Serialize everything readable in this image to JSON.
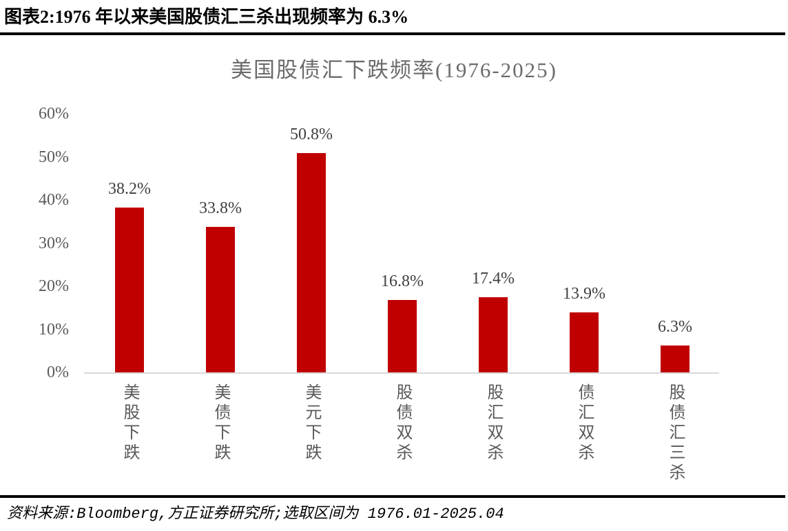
{
  "page": {
    "header_caption": "图表2:1976 年以来美国股债汇三杀出现频率为 6.3%",
    "source_note": "资料来源:Bloomberg,方正证券研究所;选取区间为 1976.01-2025.04"
  },
  "chart_data": {
    "type": "bar",
    "title": "美国股债汇下跌频率(1976-2025)",
    "categories": [
      "美股下跌",
      "美债下跌",
      "美元下跌",
      "股债双杀",
      "股汇双杀",
      "债汇双杀",
      "股债汇三杀"
    ],
    "values": [
      38.2,
      33.8,
      50.8,
      16.8,
      17.4,
      13.9,
      6.3
    ],
    "value_labels": [
      "38.2%",
      "33.8%",
      "50.8%",
      "16.8%",
      "17.4%",
      "13.9%",
      "6.3%"
    ],
    "y_ticks": [
      "0%",
      "10%",
      "20%",
      "30%",
      "40%",
      "50%",
      "60%"
    ],
    "ylim": [
      0,
      60
    ],
    "xlabel": "",
    "ylabel": "",
    "grid": false,
    "legend": "none",
    "colors": {
      "bar": "#C00000",
      "axis_line": "#D9D9D9",
      "tick_label": "#595959",
      "value_label": "#3F3F3F",
      "title": "#6B6B6B"
    }
  }
}
